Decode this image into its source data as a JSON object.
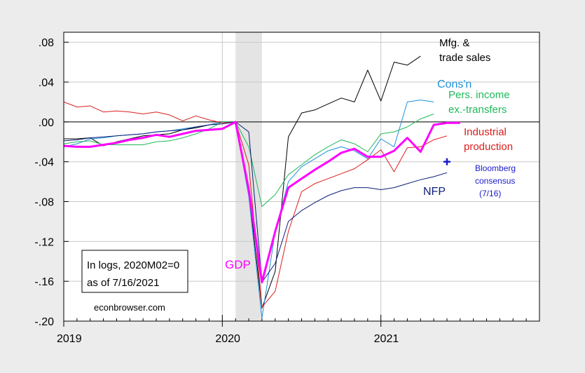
{
  "chart_data": {
    "type": "line",
    "xlim": [
      "2019-01",
      "2021-12"
    ],
    "ylim": [
      -0.2,
      0.09
    ],
    "y_ticks": [
      ".08",
      ".04",
      ".00",
      "-.04",
      "-.08",
      "-.12",
      "-.16",
      "-.20"
    ],
    "y_tick_values": [
      0.08,
      0.04,
      0.0,
      -0.04,
      -0.08,
      -0.12,
      -0.16,
      -0.2
    ],
    "x_ticks": [
      "2019",
      "2020",
      "2021"
    ],
    "x_tick_values": [
      "2019-01",
      "2020-01",
      "2021-01"
    ],
    "grid": true,
    "recession_shading": {
      "start": "2020-02",
      "end": "2020-04",
      "color": "#e4e4e4"
    },
    "zero_line": true,
    "series": [
      {
        "name": "Mfg. & trade sales",
        "color": "#000000",
        "points": [
          [
            "2019-01",
            -0.017
          ],
          [
            "2019-02",
            -0.017
          ],
          [
            "2019-03",
            -0.016
          ],
          [
            "2019-04",
            -0.024
          ],
          [
            "2019-05",
            -0.02
          ],
          [
            "2019-06",
            -0.017
          ],
          [
            "2019-07",
            -0.014
          ],
          [
            "2019-08",
            -0.013
          ],
          [
            "2019-09",
            -0.012
          ],
          [
            "2019-10",
            -0.008
          ],
          [
            "2019-11",
            -0.006
          ],
          [
            "2019-12",
            -0.003
          ],
          [
            "2020-01",
            0.0
          ],
          [
            "2020-02",
            0.0
          ],
          [
            "2020-03",
            -0.07
          ],
          [
            "2020-04",
            -0.187
          ],
          [
            "2020-05",
            -0.15
          ],
          [
            "2020-06",
            -0.015
          ],
          [
            "2020-07",
            0.009
          ],
          [
            "2020-08",
            0.012
          ],
          [
            "2020-09",
            0.018
          ],
          [
            "2020-10",
            0.024
          ],
          [
            "2020-11",
            0.02
          ],
          [
            "2020-12",
            0.052
          ],
          [
            "2021-01",
            0.021
          ],
          [
            "2021-02",
            0.06
          ],
          [
            "2021-03",
            0.057
          ],
          [
            "2021-04",
            0.066
          ]
        ]
      },
      {
        "name": "Cons'n",
        "color": "#1e90dc",
        "points": [
          [
            "2019-01",
            -0.025
          ],
          [
            "2019-02",
            -0.022
          ],
          [
            "2019-03",
            -0.017
          ],
          [
            "2019-04",
            -0.016
          ],
          [
            "2019-05",
            -0.014
          ],
          [
            "2019-06",
            -0.013
          ],
          [
            "2019-07",
            -0.012
          ],
          [
            "2019-08",
            -0.01
          ],
          [
            "2019-09",
            -0.009
          ],
          [
            "2019-10",
            -0.007
          ],
          [
            "2019-11",
            -0.005
          ],
          [
            "2019-12",
            -0.003
          ],
          [
            "2020-01",
            0.0
          ],
          [
            "2020-02",
            0.0
          ],
          [
            "2020-03",
            -0.075
          ],
          [
            "2020-04",
            -0.197
          ],
          [
            "2020-05",
            -0.11
          ],
          [
            "2020-06",
            -0.06
          ],
          [
            "2020-07",
            -0.045
          ],
          [
            "2020-08",
            -0.037
          ],
          [
            "2020-09",
            -0.029
          ],
          [
            "2020-10",
            -0.025
          ],
          [
            "2020-11",
            -0.029
          ],
          [
            "2020-12",
            -0.037
          ],
          [
            "2021-01",
            -0.017
          ],
          [
            "2021-02",
            -0.025
          ],
          [
            "2021-03",
            0.02
          ],
          [
            "2021-04",
            0.022
          ],
          [
            "2021-05",
            0.02
          ]
        ]
      },
      {
        "name": "Pers. income ex.-transfers",
        "color": "#1fb85a",
        "points": [
          [
            "2019-01",
            -0.022
          ],
          [
            "2019-02",
            -0.02
          ],
          [
            "2019-03",
            -0.019
          ],
          [
            "2019-04",
            -0.023
          ],
          [
            "2019-05",
            -0.023
          ],
          [
            "2019-06",
            -0.023
          ],
          [
            "2019-07",
            -0.023
          ],
          [
            "2019-08",
            -0.02
          ],
          [
            "2019-09",
            -0.019
          ],
          [
            "2019-10",
            -0.016
          ],
          [
            "2019-11",
            -0.012
          ],
          [
            "2019-12",
            -0.007
          ],
          [
            "2020-01",
            0.0
          ],
          [
            "2020-02",
            0.0
          ],
          [
            "2020-03",
            -0.025
          ],
          [
            "2020-04",
            -0.085
          ],
          [
            "2020-05",
            -0.073
          ],
          [
            "2020-06",
            -0.053
          ],
          [
            "2020-07",
            -0.043
          ],
          [
            "2020-08",
            -0.033
          ],
          [
            "2020-09",
            -0.025
          ],
          [
            "2020-10",
            -0.018
          ],
          [
            "2020-11",
            -0.022
          ],
          [
            "2020-12",
            -0.03
          ],
          [
            "2021-01",
            -0.012
          ],
          [
            "2021-02",
            -0.01
          ],
          [
            "2021-03",
            -0.005
          ],
          [
            "2021-04",
            0.003
          ],
          [
            "2021-05",
            0.008
          ]
        ]
      },
      {
        "name": "Industrial production",
        "color": "#dc1e1e",
        "points": [
          [
            "2019-01",
            0.02
          ],
          [
            "2019-02",
            0.015
          ],
          [
            "2019-03",
            0.016
          ],
          [
            "2019-04",
            0.01
          ],
          [
            "2019-05",
            0.011
          ],
          [
            "2019-06",
            0.01
          ],
          [
            "2019-07",
            0.008
          ],
          [
            "2019-08",
            0.01
          ],
          [
            "2019-09",
            0.007
          ],
          [
            "2019-10",
            0.001
          ],
          [
            "2019-11",
            0.006
          ],
          [
            "2019-12",
            0.002
          ],
          [
            "2020-01",
            -0.001
          ],
          [
            "2020-02",
            0.0
          ],
          [
            "2020-03",
            -0.043
          ],
          [
            "2020-04",
            -0.186
          ],
          [
            "2020-05",
            -0.17
          ],
          [
            "2020-06",
            -0.11
          ],
          [
            "2020-07",
            -0.07
          ],
          [
            "2020-08",
            -0.062
          ],
          [
            "2020-09",
            -0.057
          ],
          [
            "2020-10",
            -0.052
          ],
          [
            "2020-11",
            -0.047
          ],
          [
            "2020-12",
            -0.038
          ],
          [
            "2021-01",
            -0.028
          ],
          [
            "2021-02",
            -0.05
          ],
          [
            "2021-03",
            -0.026
          ],
          [
            "2021-04",
            -0.025
          ],
          [
            "2021-05",
            -0.018
          ],
          [
            "2021-06",
            -0.014
          ]
        ]
      },
      {
        "name": "NFP",
        "color": "#0a1e78",
        "points": [
          [
            "2019-01",
            -0.019
          ],
          [
            "2019-02",
            -0.018
          ],
          [
            "2019-03",
            -0.016
          ],
          [
            "2019-04",
            -0.015
          ],
          [
            "2019-05",
            -0.014
          ],
          [
            "2019-06",
            -0.013
          ],
          [
            "2019-07",
            -0.012
          ],
          [
            "2019-08",
            -0.01
          ],
          [
            "2019-09",
            -0.009
          ],
          [
            "2019-10",
            -0.008
          ],
          [
            "2019-11",
            -0.005
          ],
          [
            "2019-12",
            -0.003
          ],
          [
            "2020-01",
            -0.002
          ],
          [
            "2020-02",
            0.0
          ],
          [
            "2020-03",
            -0.01
          ],
          [
            "2020-04",
            -0.161
          ],
          [
            "2020-05",
            -0.142
          ],
          [
            "2020-06",
            -0.1
          ],
          [
            "2020-07",
            -0.089
          ],
          [
            "2020-08",
            -0.081
          ],
          [
            "2020-09",
            -0.074
          ],
          [
            "2020-10",
            -0.069
          ],
          [
            "2020-11",
            -0.066
          ],
          [
            "2020-12",
            -0.066
          ],
          [
            "2021-01",
            -0.068
          ],
          [
            "2021-02",
            -0.066
          ],
          [
            "2021-03",
            -0.062
          ],
          [
            "2021-04",
            -0.058
          ],
          [
            "2021-05",
            -0.055
          ],
          [
            "2021-06",
            -0.051
          ]
        ]
      },
      {
        "name": "GDP",
        "color": "#ff00ff",
        "width": 3,
        "points": [
          [
            "2019-01",
            -0.024
          ],
          [
            "2019-02",
            -0.025
          ],
          [
            "2019-03",
            -0.025
          ],
          [
            "2019-04",
            -0.023
          ],
          [
            "2019-05",
            -0.021
          ],
          [
            "2019-06",
            -0.018
          ],
          [
            "2019-07",
            -0.016
          ],
          [
            "2019-08",
            -0.013
          ],
          [
            "2019-09",
            -0.015
          ],
          [
            "2019-10",
            -0.012
          ],
          [
            "2019-11",
            -0.009
          ],
          [
            "2019-12",
            -0.008
          ],
          [
            "2020-01",
            -0.007
          ],
          [
            "2020-02",
            0.0
          ],
          [
            "2020-03",
            -0.068
          ],
          [
            "2020-04",
            -0.161
          ],
          [
            "2020-05",
            -0.11
          ],
          [
            "2020-06",
            -0.066
          ],
          [
            "2020-07",
            -0.057
          ],
          [
            "2020-08",
            -0.048
          ],
          [
            "2020-09",
            -0.04
          ],
          [
            "2020-10",
            -0.031
          ],
          [
            "2020-11",
            -0.027
          ],
          [
            "2020-12",
            -0.035
          ],
          [
            "2021-01",
            -0.035
          ],
          [
            "2021-02",
            -0.029
          ],
          [
            "2021-03",
            -0.016
          ],
          [
            "2021-04",
            -0.03
          ],
          [
            "2021-05",
            -0.003
          ],
          [
            "2021-06",
            -0.001
          ],
          [
            "2021-07",
            -0.001
          ]
        ]
      }
    ],
    "consensus_marker": {
      "name": "Bloomberg consensus (7/16)",
      "date": "2021-06",
      "value": -0.04,
      "color": "#1a1acc"
    },
    "labels": {
      "mfg_1": "Mfg. &",
      "mfg_2": "trade sales",
      "consn": "Cons'n",
      "income_1": "Pers. income",
      "income_2": "ex.-transfers",
      "ip_1": "Industrial",
      "ip_2": "production",
      "bloomberg_1": "Bloomberg",
      "bloomberg_2": "consensus",
      "bloomberg_3": "(7/16)",
      "nfp": "NFP",
      "gdp": "GDP"
    },
    "note": {
      "line1": "In logs, 2020M02=0",
      "line2": "as of 7/16/2021"
    },
    "source": "econbrowser.com"
  }
}
